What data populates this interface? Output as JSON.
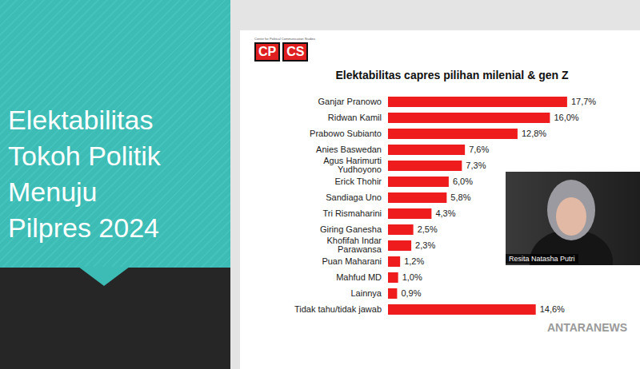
{
  "slide_title": [
    "Elektabilitas",
    "Tokoh Politik",
    "Menuju",
    "Pilpres 2024"
  ],
  "logo": {
    "caption": "Center for Political Communication Studies",
    "left": "CP",
    "right": "CS"
  },
  "presenter": "Resita Natasha Putri",
  "watermark": "ANTARANEWS",
  "chart_data": {
    "type": "bar",
    "orientation": "horizontal",
    "title": "Elektabilitas capres pilihan milenial & gen Z",
    "categories": [
      "Ganjar Pranowo",
      "Ridwan Kamil",
      "Prabowo Subianto",
      "Anies Baswedan",
      "Agus Harimurti Yudhoyono",
      "Erick Thohir",
      "Sandiaga Uno",
      "Tri Rismaharini",
      "Giring Ganesha",
      "Khofifah Indar Parawansa",
      "Puan Maharani",
      "Mahfud MD",
      "Lainnya",
      "Tidak tahu/tidak jawab"
    ],
    "values": [
      17.7,
      16.0,
      12.8,
      7.6,
      7.3,
      6.0,
      5.8,
      4.3,
      2.5,
      2.3,
      1.2,
      1.0,
      0.9,
      14.6
    ],
    "value_labels": [
      "17,7%",
      "16,0%",
      "12,8%",
      "7,6%",
      "7,3%",
      "6,0%",
      "5,8%",
      "4,3%",
      "2,5%",
      "2,3%",
      "1,2%",
      "1,0%",
      "0,9%",
      "14,6%"
    ],
    "color": "#ee1c1c",
    "xlim": [
      0,
      20
    ],
    "data_labels": true,
    "tick_labels": "y",
    "grid": false
  }
}
